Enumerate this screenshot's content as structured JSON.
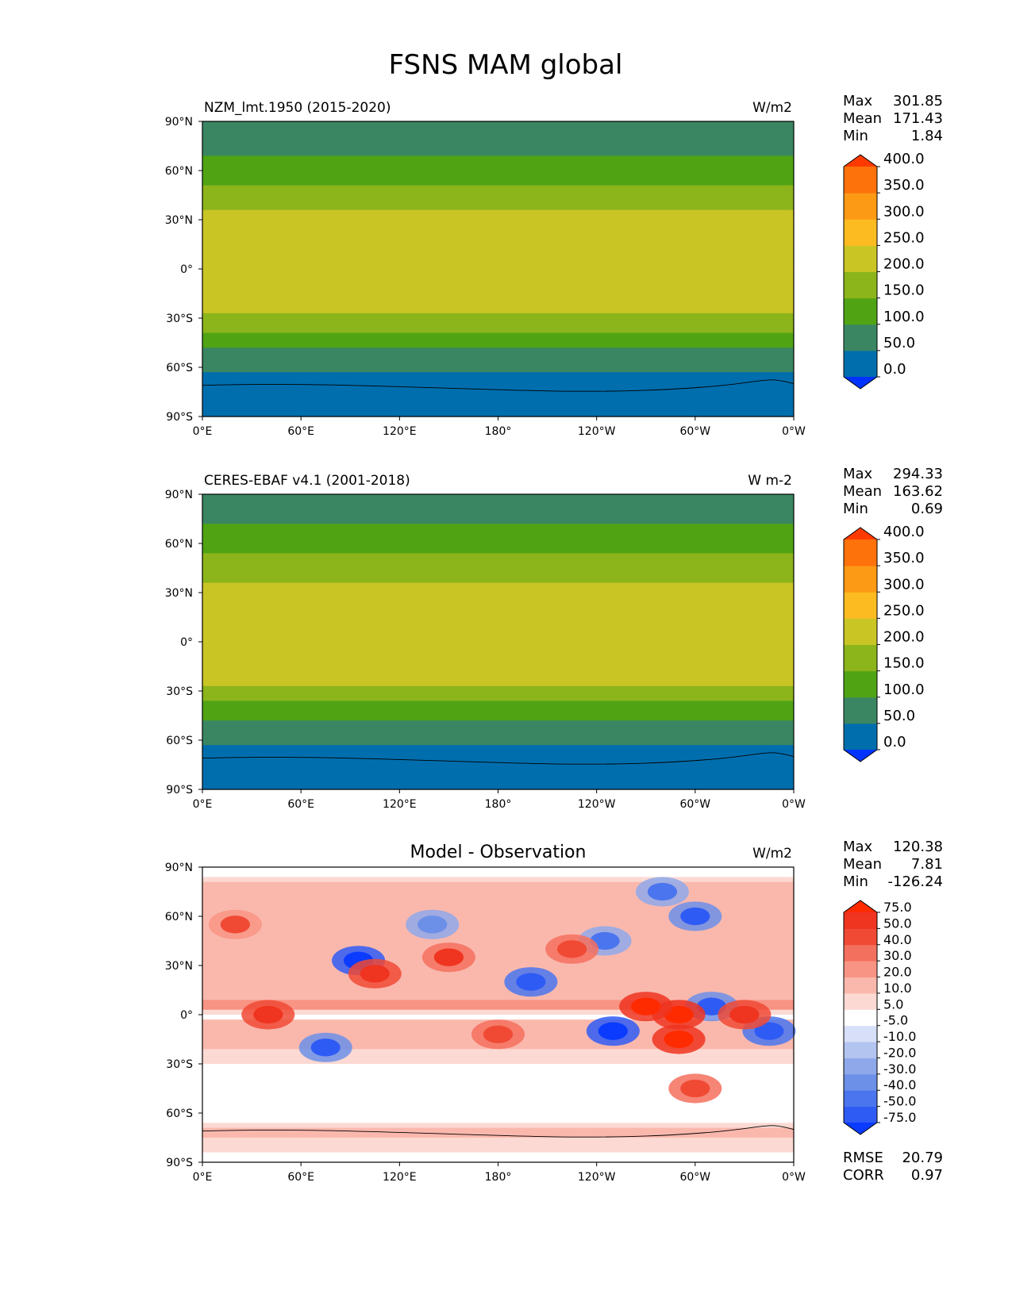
{
  "suptitle": "FSNS MAM global",
  "chart_data": [
    {
      "type": "heatmap",
      "panel": "test",
      "title": "NZM_lmt.1950 (2015-2020)",
      "units": "W/m2",
      "stats": {
        "max_label": "Max",
        "max": "301.85",
        "mean_label": "Mean",
        "mean": "171.43",
        "min_label": "Min",
        "min": "1.84"
      },
      "lat_ticks": [
        "90°N",
        "60°N",
        "30°N",
        "0°",
        "30°S",
        "60°S",
        "90°S"
      ],
      "lon_ticks": [
        "0°E",
        "60°E",
        "120°E",
        "180°",
        "120°W",
        "60°W",
        "0°W"
      ],
      "xlim": [
        0,
        360
      ],
      "ylim": [
        -90,
        90
      ],
      "colorbar": {
        "levels": [
          "0.0",
          "50.0",
          "100.0",
          "150.0",
          "200.0",
          "250.0",
          "300.0",
          "350.0",
          "400.0"
        ],
        "colors": [
          "#0033ff",
          "#006ead",
          "#3a8663",
          "#50a414",
          "#8cb41b",
          "#c9c525",
          "#fcbb21",
          "#fd9a15",
          "#fd720b",
          "#ff3a00"
        ]
      },
      "field": [
        {
          "lat": 90,
          "value": 90
        },
        {
          "lat": 80,
          "value": 90
        },
        {
          "lat": 72,
          "value": 95
        },
        {
          "lat": 65,
          "value": 110
        },
        {
          "lat": 55,
          "value": 140
        },
        {
          "lat": 45,
          "value": 170
        },
        {
          "lat": 35,
          "value": 200
        },
        {
          "lat": 25,
          "value": 230
        },
        {
          "lat": 15,
          "value": 245
        },
        {
          "lat": 5,
          "value": 220
        },
        {
          "lat": -5,
          "value": 240
        },
        {
          "lat": -15,
          "value": 230
        },
        {
          "lat": -25,
          "value": 215
        },
        {
          "lat": -33,
          "value": 175
        },
        {
          "lat": -40,
          "value": 140
        },
        {
          "lat": -45,
          "value": 115
        },
        {
          "lat": -50,
          "value": 95
        },
        {
          "lat": -58,
          "value": 75
        },
        {
          "lat": -65,
          "value": 40
        },
        {
          "lat": -90,
          "value": 20
        }
      ]
    },
    {
      "type": "heatmap",
      "panel": "reference",
      "title": "CERES-EBAF v4.1 (2001-2018)",
      "units": "W m-2",
      "stats": {
        "max_label": "Max",
        "max": "294.33",
        "mean_label": "Mean",
        "mean": "163.62",
        "min_label": "Min",
        "min": "0.69"
      },
      "lat_ticks": [
        "90°N",
        "60°N",
        "30°N",
        "0°",
        "30°S",
        "60°S",
        "90°S"
      ],
      "lon_ticks": [
        "0°E",
        "60°E",
        "120°E",
        "180°",
        "120°W",
        "60°W",
        "0°W"
      ],
      "xlim": [
        0,
        360
      ],
      "ylim": [
        -90,
        90
      ],
      "colorbar": {
        "levels": [
          "0.0",
          "50.0",
          "100.0",
          "150.0",
          "200.0",
          "250.0",
          "300.0",
          "350.0",
          "400.0"
        ],
        "colors": [
          "#0033ff",
          "#006ead",
          "#3a8663",
          "#50a414",
          "#8cb41b",
          "#c9c525",
          "#fcbb21",
          "#fd9a15",
          "#fd720b",
          "#ff3a00"
        ]
      },
      "field": [
        {
          "lat": 90,
          "value": 85
        },
        {
          "lat": 80,
          "value": 90
        },
        {
          "lat": 72,
          "value": 100
        },
        {
          "lat": 65,
          "value": 120
        },
        {
          "lat": 55,
          "value": 150
        },
        {
          "lat": 45,
          "value": 175
        },
        {
          "lat": 35,
          "value": 205
        },
        {
          "lat": 25,
          "value": 235
        },
        {
          "lat": 15,
          "value": 240
        },
        {
          "lat": 5,
          "value": 215
        },
        {
          "lat": -5,
          "value": 220
        },
        {
          "lat": -15,
          "value": 220
        },
        {
          "lat": -25,
          "value": 205
        },
        {
          "lat": -33,
          "value": 165
        },
        {
          "lat": -40,
          "value": 135
        },
        {
          "lat": -45,
          "value": 110
        },
        {
          "lat": -50,
          "value": 90
        },
        {
          "lat": -58,
          "value": 75
        },
        {
          "lat": -65,
          "value": 40
        },
        {
          "lat": -90,
          "value": 20
        }
      ]
    },
    {
      "type": "heatmap",
      "panel": "difference",
      "title": "Model - Observation",
      "units": "W/m2",
      "stats": {
        "max_label": "Max",
        "max": "120.38",
        "mean_label": "Mean",
        "mean": "7.81",
        "min_label": "Min",
        "min": "-126.24"
      },
      "metrics": {
        "rmse_label": "RMSE",
        "rmse": "20.79",
        "corr_label": "CORR",
        "corr": "0.97"
      },
      "lat_ticks": [
        "90°N",
        "60°N",
        "30°N",
        "0°",
        "30°S",
        "60°S",
        "90°S"
      ],
      "lon_ticks": [
        "0°E",
        "60°E",
        "120°E",
        "180°",
        "120°W",
        "60°W",
        "0°W"
      ],
      "xlim": [
        0,
        360
      ],
      "ylim": [
        -90,
        90
      ],
      "colorbar": {
        "levels": [
          "-75.0",
          "-50.0",
          "-40.0",
          "-30.0",
          "-20.0",
          "-10.0",
          "-5.0",
          "5.0",
          "10.0",
          "20.0",
          "30.0",
          "40.0",
          "50.0",
          "75.0"
        ],
        "colors": [
          "#0a3bff",
          "#2f5bf5",
          "#4a75ee",
          "#6c8fe8",
          "#8ea8ea",
          "#b3c4f0",
          "#d7e0f8",
          "#ffffff",
          "#fcd9d3",
          "#fab8ad",
          "#f89484",
          "#f4705e",
          "#f04a35",
          "#ef3420",
          "#ff2b00"
        ]
      },
      "field": [
        {
          "lat": 90,
          "value": 0
        },
        {
          "lat": 75,
          "value": 15
        },
        {
          "lat": 60,
          "value": 20
        },
        {
          "lat": 45,
          "value": 12
        },
        {
          "lat": 30,
          "value": 15
        },
        {
          "lat": 15,
          "value": 10
        },
        {
          "lat": 5,
          "value": 25
        },
        {
          "lat": 0,
          "value": 0
        },
        {
          "lat": -8,
          "value": 20
        },
        {
          "lat": -20,
          "value": 10
        },
        {
          "lat": -35,
          "value": 3
        },
        {
          "lat": -50,
          "value": 0
        },
        {
          "lat": -62,
          "value": 0
        },
        {
          "lat": -72,
          "value": 12
        },
        {
          "lat": -90,
          "value": 0
        }
      ],
      "anomalies": [
        {
          "lon": 95,
          "lat": 33,
          "value": -60
        },
        {
          "lon": 200,
          "lat": 20,
          "value": -45
        },
        {
          "lon": 250,
          "lat": -10,
          "value": -70
        },
        {
          "lon": 310,
          "lat": 5,
          "value": -40
        },
        {
          "lon": 345,
          "lat": -10,
          "value": -45
        },
        {
          "lon": 75,
          "lat": -20,
          "value": -40
        },
        {
          "lon": 280,
          "lat": 75,
          "value": -30
        },
        {
          "lon": 300,
          "lat": 60,
          "value": -40
        },
        {
          "lon": 245,
          "lat": 45,
          "value": -30
        },
        {
          "lon": 140,
          "lat": 55,
          "value": -25
        },
        {
          "lon": 290,
          "lat": 0,
          "value": 60
        },
        {
          "lon": 290,
          "lat": -15,
          "value": 50
        },
        {
          "lon": 270,
          "lat": 5,
          "value": 50
        },
        {
          "lon": 105,
          "lat": 25,
          "value": 45
        },
        {
          "lon": 40,
          "lat": 0,
          "value": 45
        },
        {
          "lon": 330,
          "lat": 0,
          "value": 40
        },
        {
          "lon": 150,
          "lat": 35,
          "value": 35
        },
        {
          "lon": 180,
          "lat": -12,
          "value": 30
        },
        {
          "lon": 225,
          "lat": 40,
          "value": 30
        },
        {
          "lon": 20,
          "lat": 55,
          "value": 25
        },
        {
          "lon": 300,
          "lat": -45,
          "value": 30
        }
      ]
    }
  ]
}
